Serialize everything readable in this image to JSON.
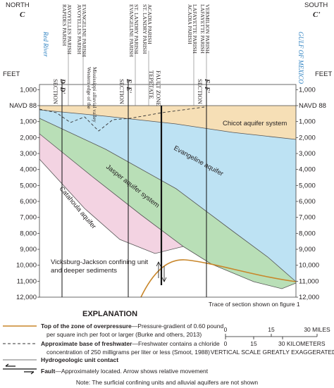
{
  "header": {
    "north": "NORTH",
    "north_section": "C",
    "south": "SOUTH",
    "south_section": "C'",
    "north_river": "Red River",
    "south_water": "GULF OF MEXICO"
  },
  "parishes": [
    [
      "RAPIDES PARISH",
      "AVOYELLES PARISH"
    ],
    [
      "AVOYELLES PARISH",
      "EVANGELINE PARISH"
    ],
    [
      "EVANGELINE PARISH",
      "ST. LANDRY PARISH"
    ],
    [
      "ST. LANDRY PARISH",
      "ACADIA PARISH"
    ],
    [
      "ACADIA PARISH",
      "LAFAYETTE PARISH"
    ],
    [
      "LAFAYETTE PARISH",
      "VERMILION PARISH"
    ]
  ],
  "sections": [
    {
      "label": "SECTION",
      "name": "D–D'"
    },
    {
      "label": "SECTION",
      "name": "E–E'"
    },
    {
      "label": "SECTION",
      "name": "F–F'"
    }
  ],
  "fault_zone": [
    "TEPETATE",
    "FAULT ZONE"
  ],
  "valley_note": [
    "Western edge of the",
    "Mississippi alluvial valley"
  ],
  "axis": {
    "unit": "FEET",
    "ticks": [
      "1,000",
      "NAVD 88",
      "1,000",
      "2,000",
      "3,000",
      "4,000",
      "5,000",
      "6,000",
      "7,000",
      "8,000",
      "9,000",
      "10,000",
      "11,000",
      "12,000"
    ]
  },
  "units": {
    "chicot": "Chicot aquifer system",
    "evangeline": "Evangeline aquifer",
    "jasper": "Jasper aquifer system",
    "catahoula": "Catahoula aquifer",
    "vicksburg": [
      "Vicksburg-Jackson confining unit",
      "and deeper sediments"
    ]
  },
  "trace_note": "Trace of section shown on figure 1",
  "explanation": {
    "title": "EXPLANATION",
    "items": [
      {
        "term": "Top of the zone of overpressure",
        "text": [
          "—Pressure-gradient of 0.60 pound",
          "per square inch per foot or larger (Burke and others, 2013)"
        ]
      },
      {
        "term": "Approximate base of freshwater",
        "text": [
          "—Freshwater contains a chloride",
          "concentration of 250 milligrams per liter or less (Smoot, 1988)"
        ]
      },
      {
        "term": "Hydrogeologic unit contact",
        "text": []
      },
      {
        "term": "Fault",
        "text": [
          "—Approximately located. Arrow shows relative movement"
        ]
      }
    ]
  },
  "scale": {
    "miles": [
      "0",
      "15",
      "30 MILES"
    ],
    "kilometers": [
      "0",
      "15",
      "30 KILOMETERS"
    ],
    "note": "VERTICAL SCALE GREATLY EXAGGERATED"
  },
  "note": "Note: The surficial confining units and alluvial aquifers are not shown"
}
